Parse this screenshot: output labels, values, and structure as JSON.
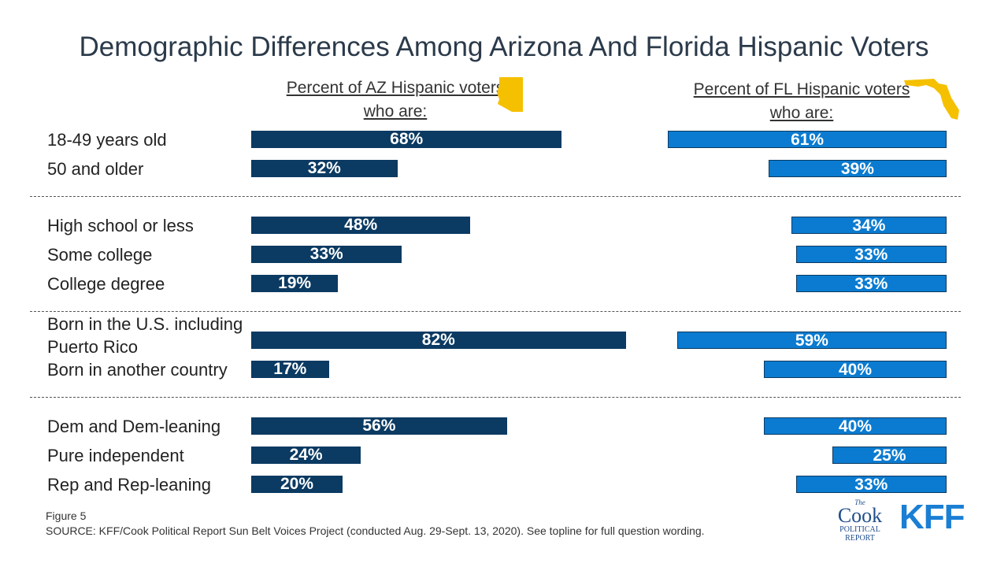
{
  "chart_data": {
    "type": "bar",
    "orientation": "horizontal",
    "title": "Demographic Differences Among Arizona And Florida Hispanic Voters",
    "categories": [
      [
        "18-49 years old",
        "50 and older"
      ],
      [
        "High school or less",
        "Some college",
        "College degree"
      ],
      [
        "Born in the U.S. including Puerto Rico",
        "Born in another country"
      ],
      [
        "Dem and Dem-leaning",
        "Pure independent",
        "Rep and Rep-leaning"
      ]
    ],
    "series": [
      {
        "name": "Percent of AZ Hispanic voters who are:",
        "color": "#0b3a62",
        "values": [
          [
            68,
            32
          ],
          [
            48,
            33,
            19
          ],
          [
            82,
            17
          ],
          [
            56,
            24,
            20
          ]
        ],
        "value_labels": [
          [
            "68%",
            "32%"
          ],
          [
            "48%",
            "33%",
            "19%"
          ],
          [
            "82%",
            "17%"
          ],
          [
            "56%",
            "24%",
            "20%"
          ]
        ]
      },
      {
        "name": "Percent of FL Hispanic voters who are:",
        "color": "#0a7bd0",
        "values": [
          [
            61,
            39
          ],
          [
            34,
            33,
            33
          ],
          [
            59,
            40
          ],
          [
            40,
            25,
            33
          ]
        ],
        "value_labels": [
          [
            "61%",
            "39%"
          ],
          [
            "34%",
            "33%",
            "33%"
          ],
          [
            "59%",
            "40%"
          ],
          [
            "40%",
            "25%",
            "33%"
          ]
        ]
      }
    ]
  },
  "figure_label": "Figure 5",
  "source": "SOURCE: KFF/Cook Political Report Sun Belt Voices Project (conducted Aug. 29-Sept. 13, 2020). See topline for full question wording.",
  "logos": {
    "cook": [
      "The",
      "Cook",
      "POLITICAL",
      "REPORT"
    ],
    "kff": "KFF"
  }
}
